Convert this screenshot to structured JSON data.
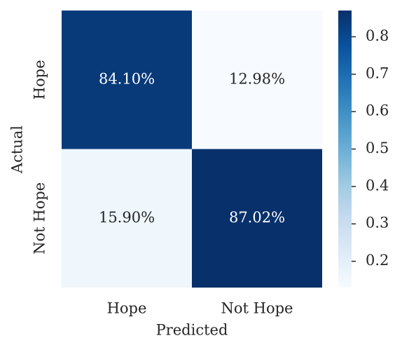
{
  "chart_data": {
    "type": "heatmap",
    "x_categories": [
      "Hope",
      "Not Hope"
    ],
    "y_categories": [
      "Hope",
      "Not Hope"
    ],
    "values": [
      [
        0.841,
        0.1298
      ],
      [
        0.159,
        0.8702
      ]
    ],
    "value_labels": [
      [
        "84.10%",
        "12.98%"
      ],
      [
        "15.90%",
        "87.02%"
      ]
    ],
    "xlabel": "Predicted",
    "ylabel": "Actual",
    "colorbar_lim": [
      0.1298,
      0.8702
    ],
    "colorbar_ticks": [
      0.2,
      0.3,
      0.4,
      0.5,
      0.6,
      0.7,
      0.8
    ],
    "colormap": [
      "#f7fbff",
      "#deebf7",
      "#c6dbef",
      "#9ecae1",
      "#6baed6",
      "#4292c6",
      "#2171b5",
      "#08519c",
      "#08306b"
    ]
  }
}
